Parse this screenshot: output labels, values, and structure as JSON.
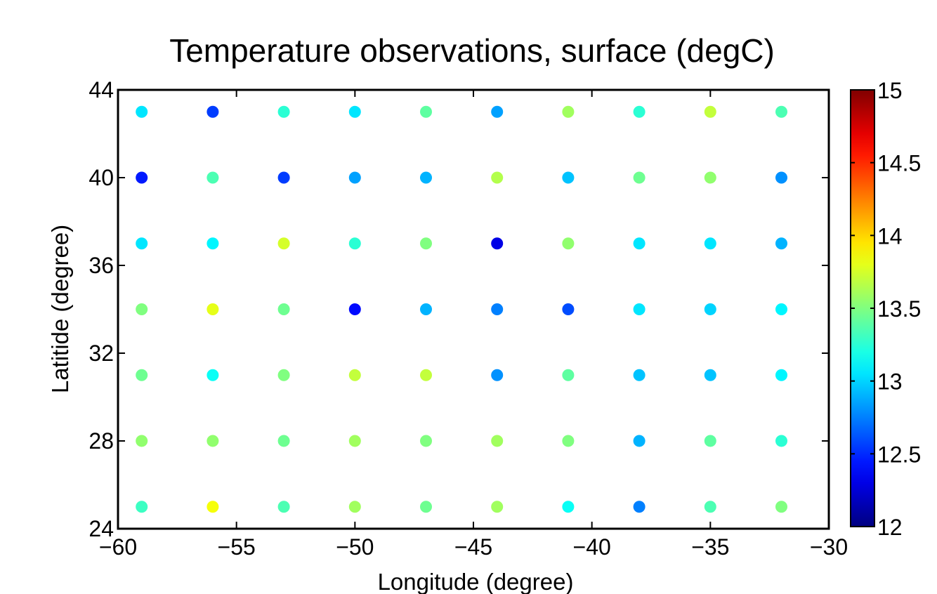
{
  "chart_data": {
    "type": "scatter",
    "title": "Temperature observations, surface (degC)",
    "xlabel": "Longitude (degree)",
    "ylabel": "Latitide (degree)",
    "xlim": [
      -60,
      -30
    ],
    "ylim": [
      24,
      44
    ],
    "xticks": [
      -60,
      -55,
      -50,
      -45,
      -40,
      -35,
      -30
    ],
    "xtick_labels": [
      "−60",
      "−55",
      "−50",
      "−45",
      "−40",
      "−35",
      "−30"
    ],
    "yticks": [
      24,
      28,
      32,
      36,
      40,
      44
    ],
    "ytick_labels": [
      "24",
      "28",
      "32",
      "36",
      "40",
      "44"
    ],
    "colormap": "jet",
    "clim": [
      12,
      15
    ],
    "colorbar_ticks": [
      12,
      12.5,
      13,
      13.5,
      14,
      14.5,
      15
    ],
    "colorbar_tick_labels": [
      "12",
      "12.5",
      "13",
      "13.5",
      "14",
      "14.5",
      "15"
    ],
    "grid": false,
    "x": [
      -59,
      -56,
      -53,
      -50,
      -47,
      -44,
      -41,
      -38,
      -35,
      -32
    ],
    "y": [
      43,
      40,
      37,
      34,
      31,
      28,
      25
    ],
    "values": [
      [
        13.05,
        12.55,
        13.25,
        13.05,
        13.4,
        12.85,
        13.6,
        13.25,
        13.7,
        13.35
      ],
      [
        12.45,
        13.35,
        12.55,
        12.85,
        12.9,
        13.65,
        12.95,
        13.45,
        13.55,
        12.8
      ],
      [
        13.05,
        13.1,
        13.75,
        13.25,
        13.5,
        12.3,
        13.55,
        13.05,
        13.05,
        12.9
      ],
      [
        13.5,
        13.8,
        13.45,
        12.4,
        12.9,
        12.75,
        12.6,
        13.05,
        13.0,
        13.1
      ],
      [
        13.45,
        13.15,
        13.5,
        13.7,
        13.7,
        12.8,
        13.4,
        12.95,
        12.95,
        13.1
      ],
      [
        13.55,
        13.55,
        13.45,
        13.6,
        13.5,
        13.6,
        13.5,
        12.9,
        13.4,
        13.25
      ],
      [
        13.3,
        13.85,
        13.35,
        13.6,
        13.45,
        13.6,
        13.15,
        12.75,
        13.35,
        13.5
      ]
    ]
  }
}
